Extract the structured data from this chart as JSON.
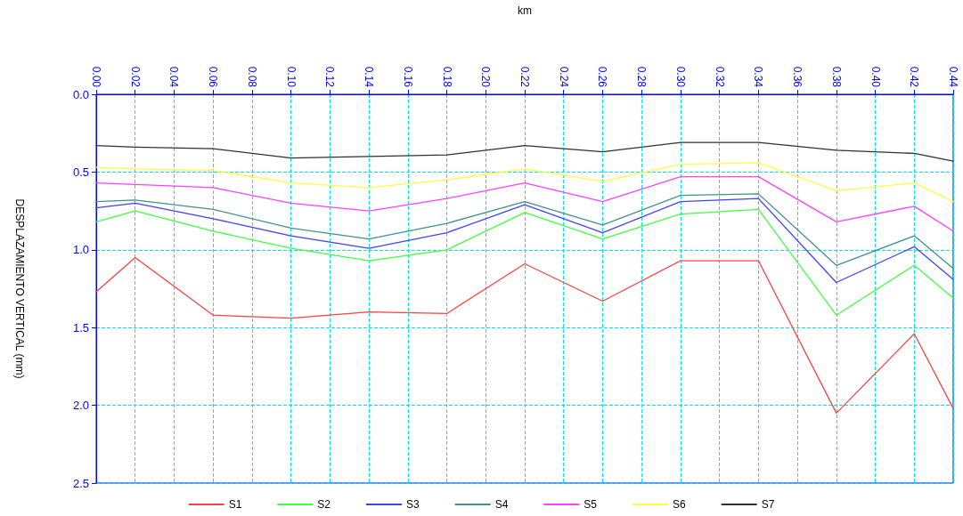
{
  "chart_data": {
    "type": "line",
    "xlabel": "km",
    "ylabel": "DESPLAZAMIENTO VERTICAL (mm)",
    "x": [
      0,
      0.02,
      0.06,
      0.1,
      0.14,
      0.18,
      0.22,
      0.26,
      0.3,
      0.34,
      0.38,
      0.42,
      0.44
    ],
    "series": [
      {
        "name": "S1",
        "color": "#ff4040",
        "values": [
          1.27,
          1.05,
          1.42,
          1.44,
          1.4,
          1.41,
          1.09,
          1.33,
          1.07,
          1.07,
          2.05,
          1.54,
          2.02
        ]
      },
      {
        "name": "S2",
        "color": "#40ff40",
        "values": [
          0.82,
          0.75,
          0.88,
          0.99,
          1.07,
          1.0,
          0.76,
          0.93,
          0.77,
          0.74,
          1.42,
          1.1,
          1.31
        ]
      },
      {
        "name": "S3",
        "color": "#4040ff",
        "values": [
          0.73,
          0.7,
          0.8,
          0.91,
          0.99,
          0.89,
          0.71,
          0.89,
          0.69,
          0.67,
          1.21,
          0.98,
          1.19
        ]
      },
      {
        "name": "S4",
        "color": "#409090",
        "values": [
          0.69,
          0.68,
          0.74,
          0.86,
          0.93,
          0.83,
          0.69,
          0.84,
          0.65,
          0.64,
          1.1,
          0.91,
          1.12
        ]
      },
      {
        "name": "S5",
        "color": "#ff40ff",
        "values": [
          0.57,
          0.58,
          0.6,
          0.7,
          0.75,
          0.67,
          0.57,
          0.69,
          0.53,
          0.53,
          0.82,
          0.72,
          0.88
        ]
      },
      {
        "name": "S6",
        "color": "#ffff40",
        "values": [
          0.47,
          0.48,
          0.49,
          0.57,
          0.6,
          0.55,
          0.48,
          0.56,
          0.45,
          0.44,
          0.62,
          0.57,
          0.69
        ]
      },
      {
        "name": "S7",
        "color": "#303030",
        "values": [
          0.33,
          0.34,
          0.35,
          0.41,
          0.4,
          0.39,
          0.33,
          0.37,
          0.31,
          0.31,
          0.36,
          0.38,
          0.43
        ]
      }
    ],
    "xlim": [
      0,
      0.44
    ],
    "xticks": [
      {
        "value": 0,
        "label": "0.00"
      },
      {
        "value": 0.02,
        "label": "0.02"
      },
      {
        "value": 0.04,
        "label": "0.04"
      },
      {
        "value": 0.06,
        "label": "0.06"
      },
      {
        "value": 0.08,
        "label": "0.08"
      },
      {
        "value": 0.1,
        "label": "0.10"
      },
      {
        "value": 0.12,
        "label": "0.12"
      },
      {
        "value": 0.14,
        "label": "0.14"
      },
      {
        "value": 0.16,
        "label": "0.16"
      },
      {
        "value": 0.18,
        "label": "0.18"
      },
      {
        "value": 0.2,
        "label": "0.20"
      },
      {
        "value": 0.22,
        "label": "0.22"
      },
      {
        "value": 0.24,
        "label": "0.24"
      },
      {
        "value": 0.26,
        "label": "0.26"
      },
      {
        "value": 0.28,
        "label": "0.28"
      },
      {
        "value": 0.3,
        "label": "0.30"
      },
      {
        "value": 0.32,
        "label": "0.32"
      },
      {
        "value": 0.34,
        "label": "0.34"
      },
      {
        "value": 0.36,
        "label": "0.36"
      },
      {
        "value": 0.38,
        "label": "0.38"
      },
      {
        "value": 0.4,
        "label": "0.40"
      },
      {
        "value": 0.42,
        "label": "0.42"
      },
      {
        "value": 0.44,
        "label": "0.44"
      }
    ],
    "ylim": [
      2.5,
      0
    ],
    "yticks": [
      {
        "value": 0,
        "label": "0.0"
      },
      {
        "value": 0.5,
        "label": "0.5"
      },
      {
        "value": 1,
        "label": "1.0"
      },
      {
        "value": 1.5,
        "label": "1.5"
      },
      {
        "value": 2,
        "label": "2.0"
      },
      {
        "value": 2.5,
        "label": "2.5"
      }
    ],
    "grid": true,
    "legend": "bottom",
    "marker": "none",
    "line_style": "solid"
  }
}
